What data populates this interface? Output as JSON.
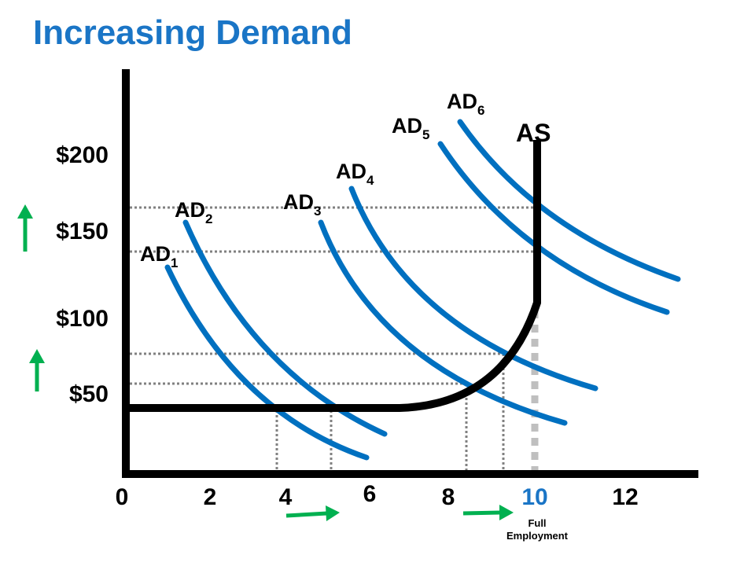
{
  "title": "Increasing Demand",
  "y_labels": [
    "$200",
    "$150",
    "$100",
    "$50"
  ],
  "x_labels": [
    "0",
    "2",
    "4",
    "6",
    "8",
    "10",
    "12"
  ],
  "curves": [
    {
      "name": "AD",
      "sub": "1"
    },
    {
      "name": "AD",
      "sub": "2"
    },
    {
      "name": "AD",
      "sub": "3"
    },
    {
      "name": "AD",
      "sub": "4"
    },
    {
      "name": "AD",
      "sub": "5"
    },
    {
      "name": "AD",
      "sub": "6"
    }
  ],
  "supply_label": "AS",
  "note": [
    "Full",
    "Employment"
  ]
}
